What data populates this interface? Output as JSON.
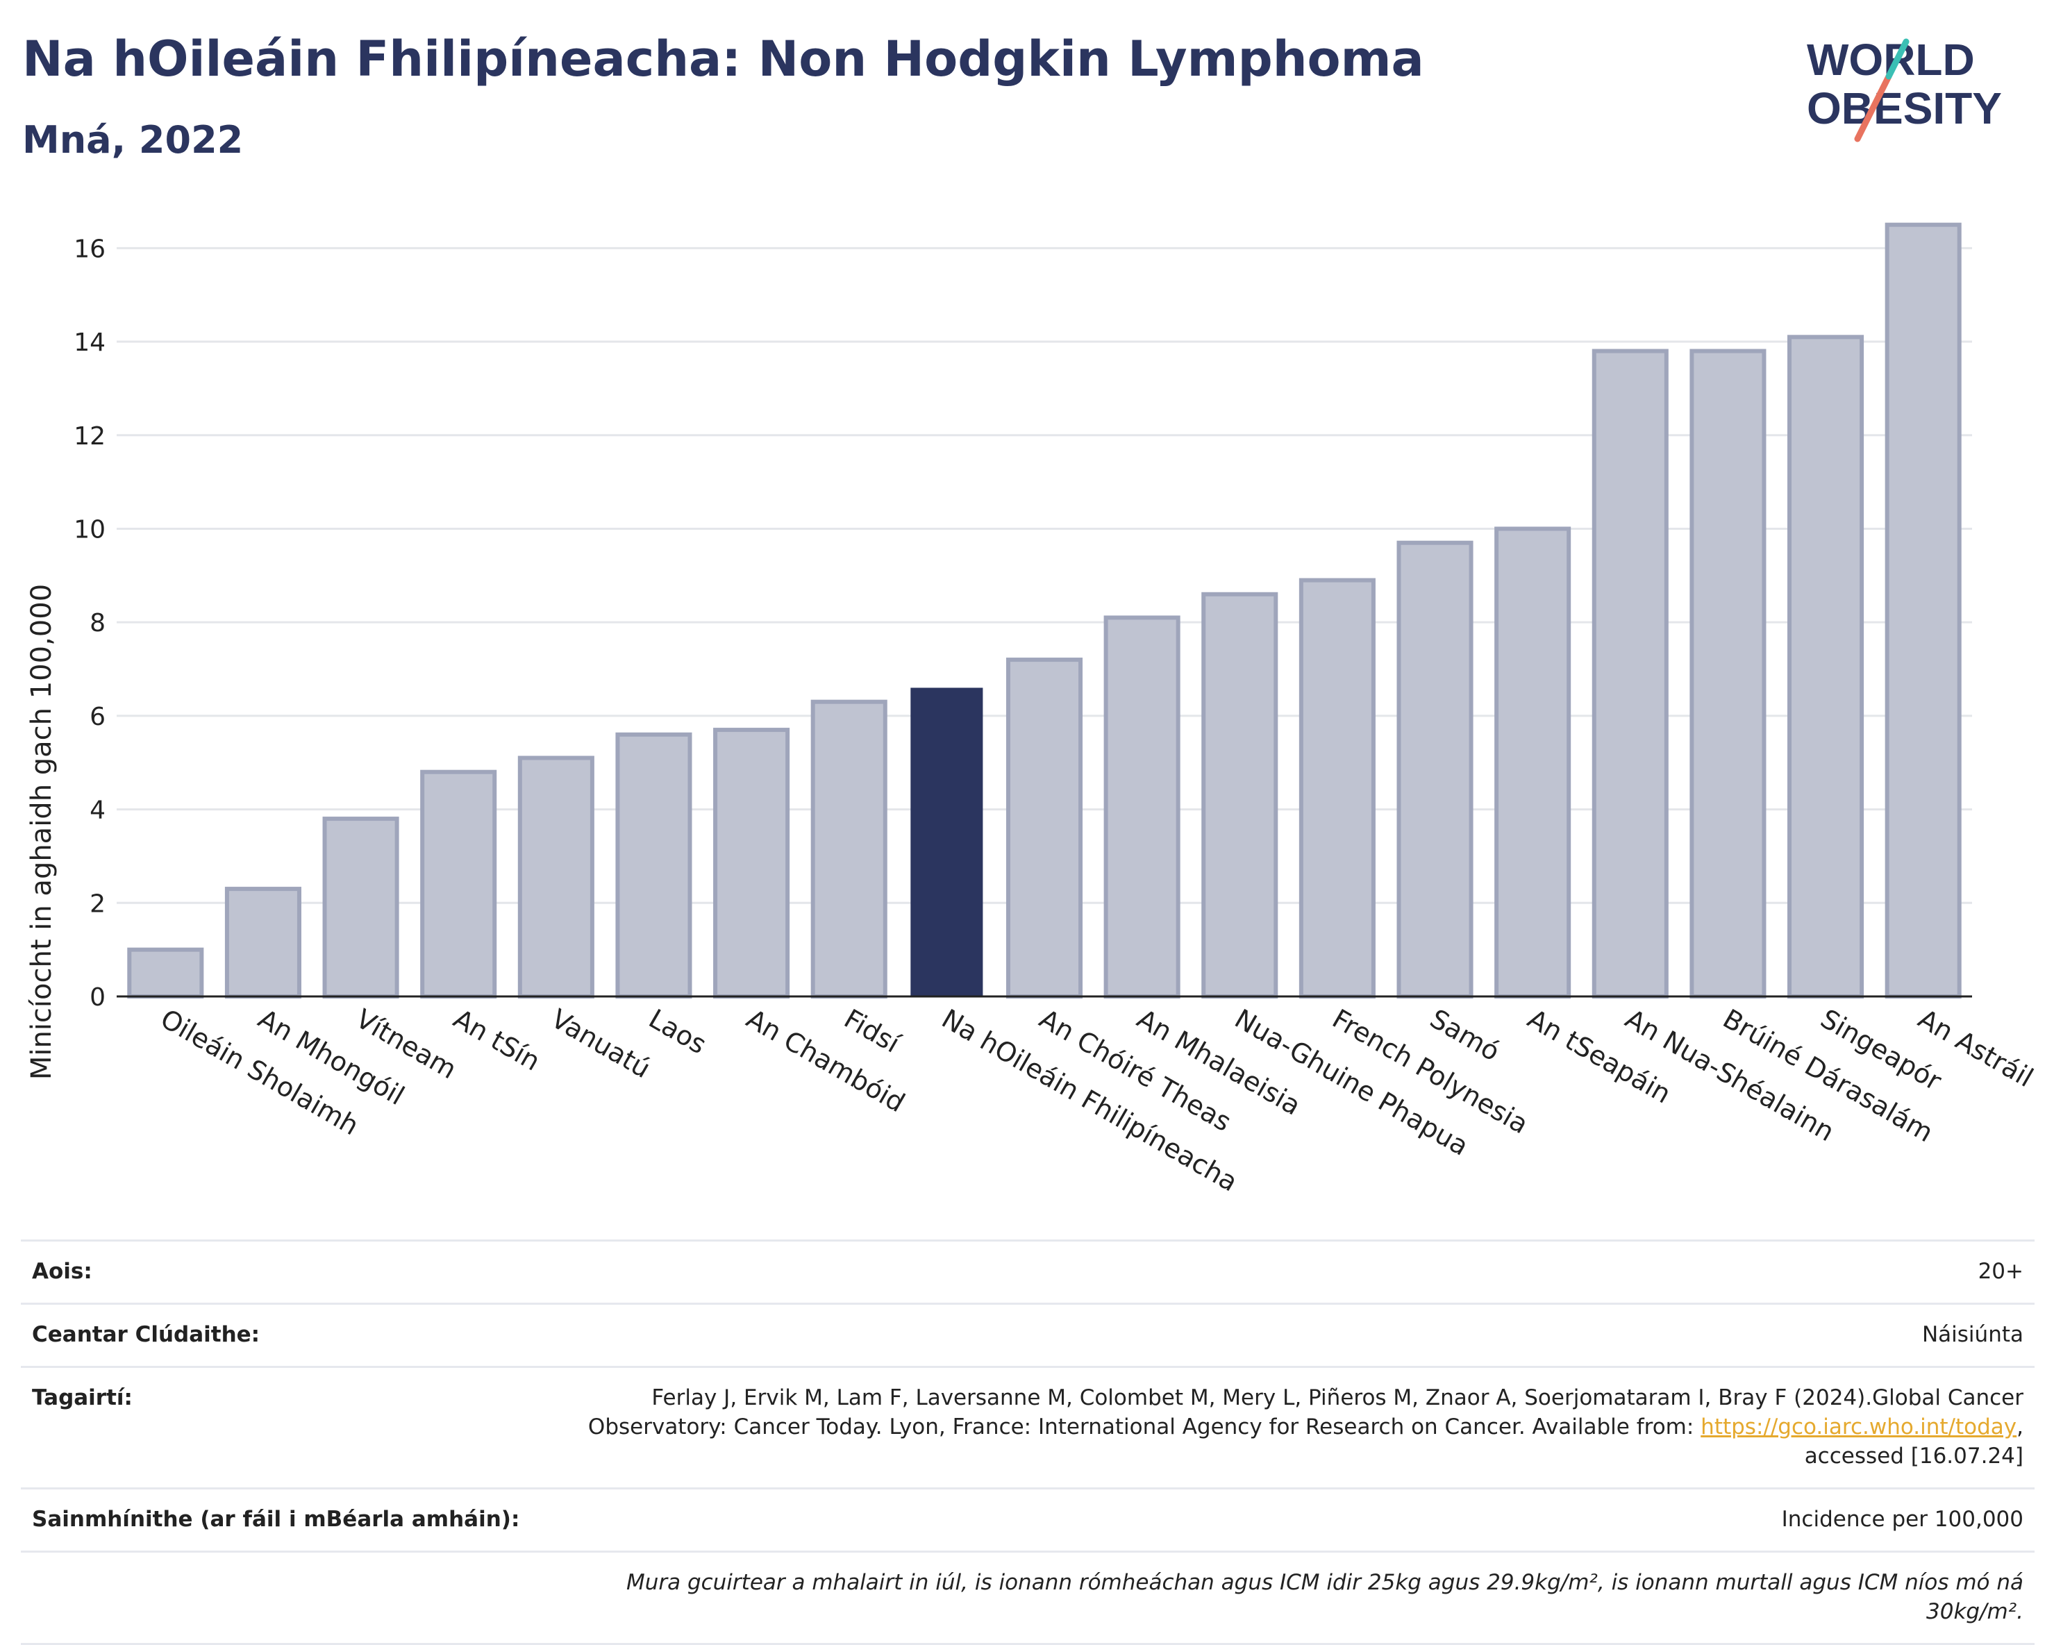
{
  "header": {
    "title": "Na hOileáin Fhilipíneacha: Non Hodgkin Lymphoma",
    "subtitle": "Mná, 2022"
  },
  "logo": {
    "line1": "WORLD",
    "line2": "OBESITY"
  },
  "colors": {
    "title": "#2b355f",
    "bar_default": "#bfc3d1",
    "bar_default_border": "#9fa5bb",
    "bar_highlight": "#2b355f",
    "grid": "#e4e6ea",
    "logo_teal": "#3bbfb4",
    "logo_red": "#e8735f",
    "link": "#e5a92e"
  },
  "chart_data": {
    "type": "bar",
    "title": "",
    "xlabel": "",
    "ylabel": "Minicíocht in aghaidh gach 100,000",
    "ylim": [
      0,
      17
    ],
    "yticks": [
      0,
      2,
      4,
      6,
      8,
      10,
      12,
      14,
      16
    ],
    "grid": true,
    "highlight": "Na hOileáin Fhilipíneacha",
    "categories": [
      "Oileáin Sholaimh",
      "An Mhongóil",
      "Vítneam",
      "An tSín",
      "Vanuatú",
      "Laos",
      "An Chambóid",
      "Fidsí",
      "Na hOileáin Fhilipíneacha",
      "An Chóiré Theas",
      "An Mhalaeisia",
      "Nua-Ghuine Phapua",
      "French Polynesia",
      "Samó",
      "An tSeapáin",
      "An Nua-Shéalainn",
      "Brúiné Dárasalám",
      "Singeapór",
      "An Astráil"
    ],
    "values": [
      1.0,
      2.3,
      3.8,
      4.8,
      5.1,
      5.6,
      5.7,
      6.3,
      6.6,
      7.2,
      8.1,
      8.6,
      8.9,
      9.7,
      10.0,
      13.8,
      13.8,
      14.1,
      16.5
    ]
  },
  "meta": {
    "age_label": "Aois:",
    "age_value": "20+",
    "coverage_label": "Ceantar Clúdaithe:",
    "coverage_value": "Náisiúnta",
    "references_label": "Tagairtí:",
    "references_text_1": "Ferlay J, Ervik M, Lam F, Laversanne M, Colombet M, Mery L, Piñeros M, Znaor A, Soerjomataram I, Bray F (2024).Global Cancer",
    "references_text_2": "Observatory: Cancer Today. Lyon, France: International Agency for Research on Cancer. Available from: ",
    "references_link": "https://gco.iarc.who.int/today",
    "references_text_3": ",",
    "references_text_4": "accessed [16.07.24]",
    "definitions_label": "Sainmhínithe (ar fáil i mBéarla amháin):",
    "definitions_value": "Incidence per 100,000",
    "note": "Mura gcuirtear a mhalairt in iúl, is ionann rómheáchan agus ICM idir 25kg agus 29.9kg/m², is ionann murtall agus ICM níos mó ná 30kg/m²."
  }
}
